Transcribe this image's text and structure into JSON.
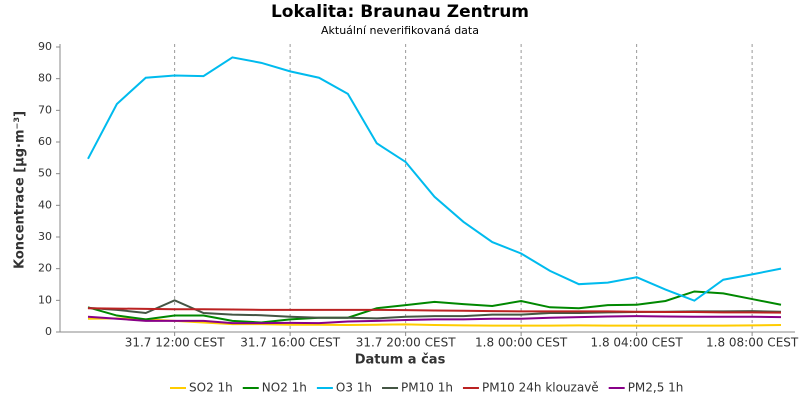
{
  "chart_data": {
    "type": "line",
    "title": "Lokalita: Braunau Zentrum",
    "subtitle": "Aktuální neverifikovaná data",
    "x_label": "Datum a čas",
    "y_label": "Koncentrace [µg·m⁻³]",
    "categories": [
      null,
      null,
      null,
      "31.7 12:00 CEST",
      null,
      null,
      null,
      "31.7 16:00 CEST",
      null,
      null,
      null,
      "31.7 20:00 CEST",
      null,
      null,
      null,
      "1.8 00:00 CEST",
      null,
      null,
      null,
      "1.8 04:00 CEST",
      null,
      null,
      null,
      "1.8 08:00 CEST",
      null
    ],
    "ylim": [
      0,
      90
    ],
    "yticks": [
      0,
      10,
      20,
      30,
      40,
      50,
      60,
      70,
      80,
      90
    ],
    "grid": true,
    "legend": "bottom",
    "series": [
      {
        "name": "SO2 1h",
        "color": "#ffcc00",
        "values": [
          4.2,
          4.3,
          4,
          3.5,
          3,
          2.5,
          2.5,
          2.3,
          2.3,
          2.2,
          2.3,
          2.4,
          2.2,
          2.1,
          2,
          2,
          2,
          2.1,
          2,
          2,
          2,
          2,
          2,
          2.1,
          2.2
        ]
      },
      {
        "name": "NO2 1h",
        "color": "#008800",
        "values": [
          7.8,
          5.2,
          4,
          5.2,
          5.2,
          3.5,
          3,
          4,
          4.5,
          4.5,
          7.5,
          8.5,
          9.5,
          8.8,
          8.2,
          9.8,
          7.8,
          7.5,
          8.5,
          8.6,
          9.8,
          12.8,
          12.2,
          10.4,
          8.6
        ]
      },
      {
        "name": "O3 1h",
        "color": "#00bbee",
        "values": [
          54.7,
          72,
          80.3,
          81,
          80.8,
          86.7,
          85,
          82.3,
          80.3,
          75.2,
          59.6,
          53.7,
          42.7,
          34.8,
          28.4,
          24.8,
          19.3,
          15.1,
          15.6,
          17.3,
          13.4,
          9.9,
          16.5,
          18.2,
          20
        ]
      },
      {
        "name": "PM10 1h",
        "color": "#445544",
        "values": [
          7.6,
          7,
          6,
          10,
          6,
          5.5,
          5.3,
          4.8,
          4.5,
          4.5,
          4.3,
          4.8,
          5,
          5,
          5.5,
          5.5,
          6,
          6,
          6.2,
          6.3,
          6.4,
          6.5,
          6.5,
          6.6,
          6.4
        ]
      },
      {
        "name": "PM10 24h klouzavě",
        "color": "#bb2222",
        "values": [
          7.5,
          7.4,
          7.3,
          7.2,
          7.2,
          7.1,
          7,
          7,
          7,
          7,
          7,
          6.9,
          6.8,
          6.7,
          6.6,
          6.5,
          6.5,
          6.5,
          6.5,
          6.4,
          6.3,
          6.3,
          6.2,
          6.2,
          6.1
        ]
      },
      {
        "name": "PM2,5 1h",
        "color": "#880088",
        "values": [
          4.8,
          4.2,
          3.5,
          3.5,
          3.5,
          2.8,
          2.8,
          2.9,
          2.8,
          3.3,
          3.5,
          3.8,
          4,
          4,
          4.2,
          4.2,
          4.5,
          4.7,
          4.9,
          5,
          4.9,
          4.8,
          4.8,
          4.8,
          4.7
        ]
      }
    ]
  }
}
